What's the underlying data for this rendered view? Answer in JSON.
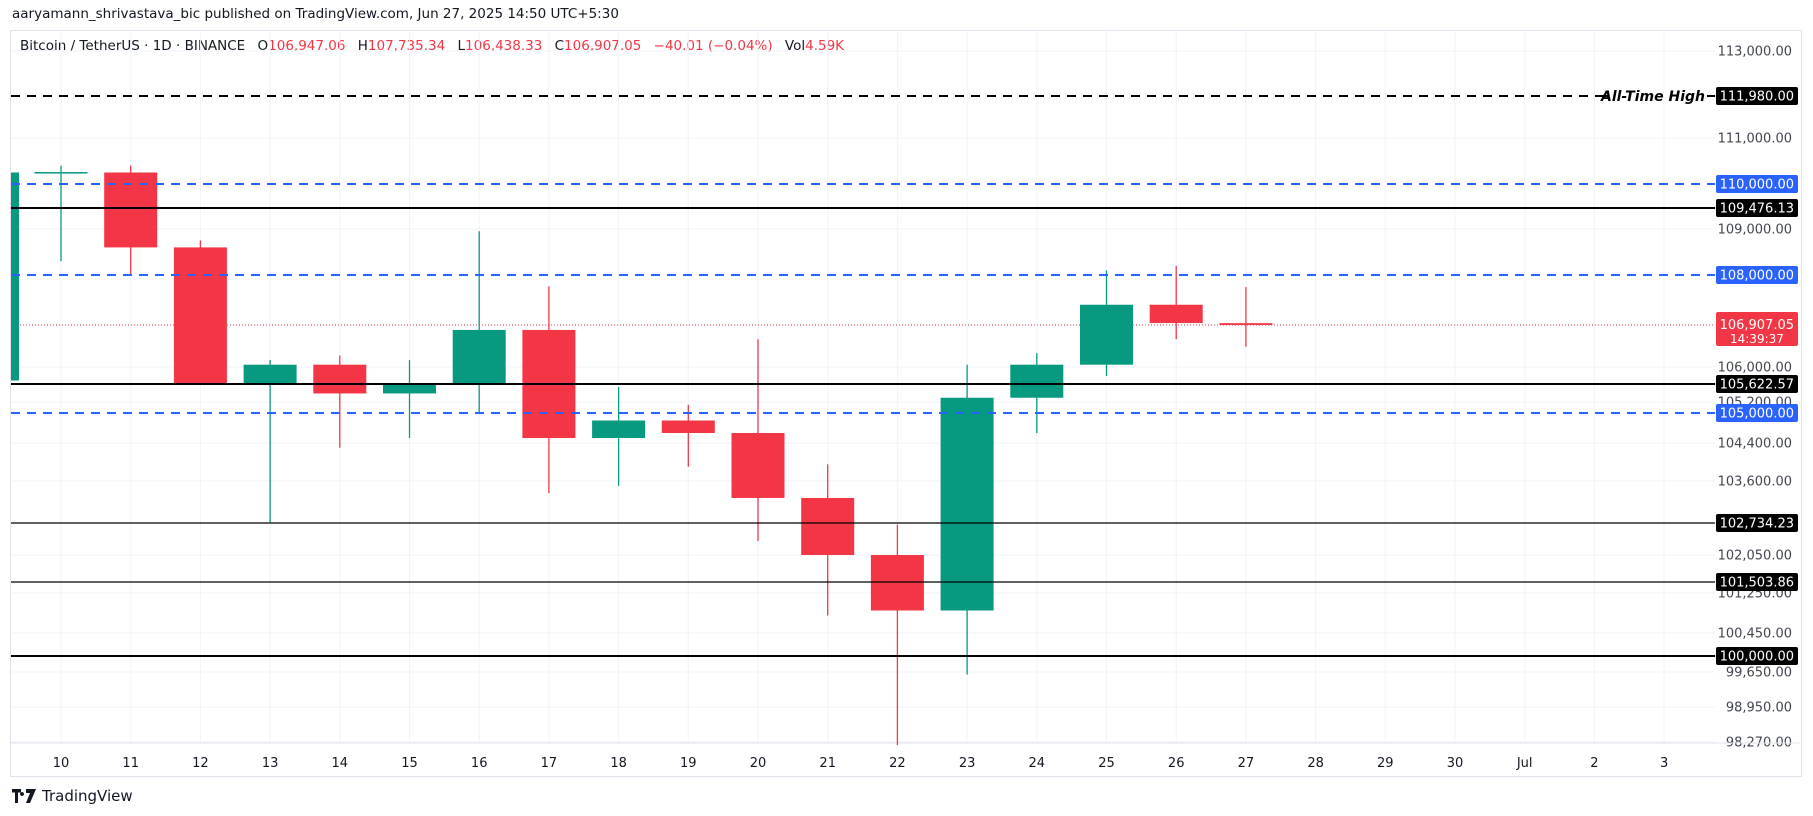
{
  "publisher_line": "aaryamann_shrivastava_bic published on TradingView.com, Jun 27, 2025 14:50 UTC+5:30",
  "legend": {
    "symbol": "Bitcoin / TetherUS · 1D · BINANCE",
    "open_label": "O",
    "open": "106,947.06",
    "high_label": "H",
    "high": "107,735.34",
    "low_label": "L",
    "low": "106,438.33",
    "close_label": "C",
    "close": "106,907.05",
    "change": "−40.01 (−0.04%)",
    "vol_label": "Vol",
    "vol": "4.59K"
  },
  "footer": {
    "brand": "TradingView"
  },
  "colors": {
    "up": "#089981",
    "down": "#f23645",
    "blue_level": "#2962ff",
    "black_level": "#000000"
  },
  "chart_data": {
    "type": "candlestick",
    "grid": true,
    "x_tick_labels": [
      "10",
      "11",
      "12",
      "13",
      "14",
      "15",
      "16",
      "17",
      "18",
      "19",
      "20",
      "21",
      "22",
      "23",
      "24",
      "25",
      "26",
      "27",
      "28",
      "29",
      "30",
      "Jul",
      "2",
      "3"
    ],
    "y_tick_labels": [
      "113,000.00",
      "111,000.00",
      "109,000.00",
      "106,000.00",
      "105,200.00",
      "104,400.00",
      "103,600.00",
      "102,050.00",
      "101,250.00",
      "100,450.00",
      "99,650.00",
      "98,950.00",
      "98,270.00"
    ],
    "candles": [
      {
        "date": "9",
        "open": 105700,
        "high": 110250,
        "low": 105700,
        "close": 110250
      },
      {
        "date": "10",
        "open": 110250,
        "high": 110400,
        "low": 108300,
        "close": 110260
      },
      {
        "date": "11",
        "open": 110250,
        "high": 110400,
        "low": 108000,
        "close": 108600
      },
      {
        "date": "12",
        "open": 108600,
        "high": 108750,
        "low": 105600,
        "close": 105620
      },
      {
        "date": "13",
        "open": 105620,
        "high": 106150,
        "low": 102750,
        "close": 106050
      },
      {
        "date": "14",
        "open": 106050,
        "high": 106250,
        "low": 104300,
        "close": 105400
      },
      {
        "date": "15",
        "open": 105400,
        "high": 106150,
        "low": 104500,
        "close": 105600
      },
      {
        "date": "16",
        "open": 105600,
        "high": 108950,
        "low": 105000,
        "close": 106800
      },
      {
        "date": "17",
        "open": 106800,
        "high": 107750,
        "low": 103350,
        "close": 104500
      },
      {
        "date": "18",
        "open": 104500,
        "high": 105550,
        "low": 103500,
        "close": 104850
      },
      {
        "date": "19",
        "open": 104850,
        "high": 105150,
        "low": 103900,
        "close": 104600
      },
      {
        "date": "20",
        "open": 104600,
        "high": 106600,
        "low": 102350,
        "close": 103250
      },
      {
        "date": "21",
        "open": 103250,
        "high": 103950,
        "low": 100800,
        "close": 102050
      },
      {
        "date": "22",
        "open": 102050,
        "high": 102700,
        "low": 98200,
        "close": 100900
      },
      {
        "date": "23",
        "open": 100900,
        "high": 106050,
        "low": 99600,
        "close": 105300
      },
      {
        "date": "24",
        "open": 105300,
        "high": 106300,
        "low": 104600,
        "close": 106050
      },
      {
        "date": "25",
        "open": 106050,
        "high": 108100,
        "low": 105800,
        "close": 107350
      },
      {
        "date": "26",
        "open": 107350,
        "high": 108200,
        "low": 106600,
        "close": 106950
      },
      {
        "date": "27",
        "open": 106947.06,
        "high": 107735.34,
        "low": 106438.33,
        "close": 106907.05
      }
    ],
    "levels": [
      {
        "price": 111980,
        "label": "111,980.00",
        "style": "dashed",
        "color": "black",
        "annotation": "All-Time High"
      },
      {
        "price": 110000,
        "label": "110,000.00",
        "style": "dashed",
        "color": "blue"
      },
      {
        "price": 109476.13,
        "label": "109,476.13",
        "style": "solid",
        "color": "black",
        "weight": "thick"
      },
      {
        "price": 108000,
        "label": "108,000.00",
        "style": "dashed",
        "color": "blue"
      },
      {
        "price": 105622.57,
        "label": "105,622.57",
        "style": "solid",
        "color": "black",
        "weight": "thick"
      },
      {
        "price": 105000,
        "label": "105,000.00",
        "style": "dashed",
        "color": "blue"
      },
      {
        "price": 102734.23,
        "label": "102,734.23",
        "style": "solid",
        "color": "black",
        "weight": "thin"
      },
      {
        "price": 101503.86,
        "label": "101,503.86",
        "style": "solid",
        "color": "black",
        "weight": "thin"
      },
      {
        "price": 100000,
        "label": "100,000.00",
        "style": "solid",
        "color": "black",
        "weight": "thick"
      }
    ],
    "last_price": {
      "price": 106907.05,
      "label": "106,907.05",
      "countdown": "14:39:37"
    }
  }
}
